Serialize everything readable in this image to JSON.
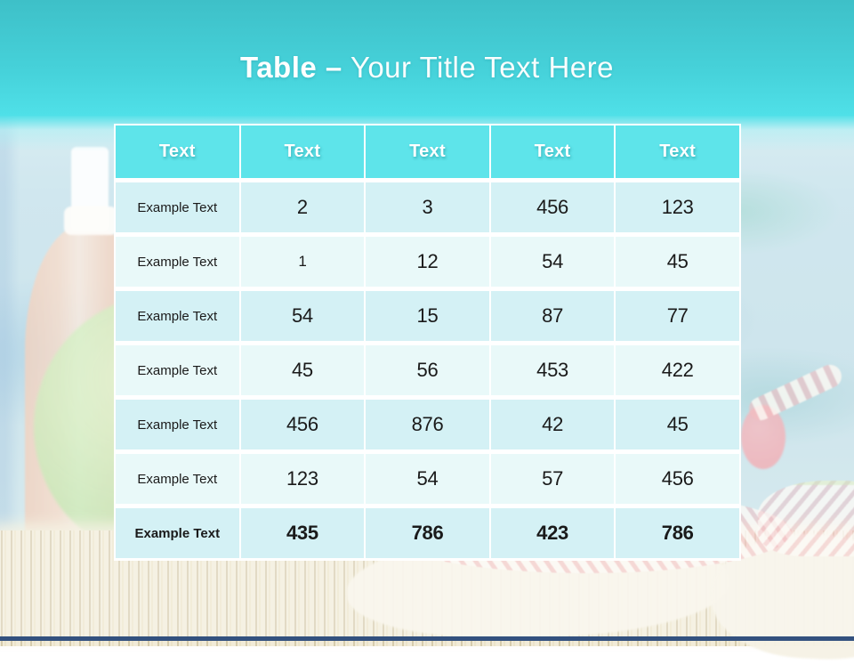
{
  "slide": {
    "title": {
      "bold": "Table –",
      "rest": "Your Title Text Here"
    }
  },
  "table": {
    "headers": [
      "Text",
      "Text",
      "Text",
      "Text",
      "Text"
    ],
    "rows": [
      {
        "label": "Example Text",
        "values": [
          "2",
          "3",
          "456",
          "123"
        ]
      },
      {
        "label": "Example Text",
        "values": [
          "1",
          "12",
          "54",
          "45"
        ]
      },
      {
        "label": "Example Text",
        "values": [
          "54",
          "15",
          "87",
          "77"
        ]
      },
      {
        "label": "Example Text",
        "values": [
          "45",
          "56",
          "453",
          "422"
        ]
      },
      {
        "label": "Example Text",
        "values": [
          "456",
          "876",
          "42",
          "45"
        ]
      },
      {
        "label": "Example Text",
        "values": [
          "123",
          "54",
          "57",
          "456"
        ]
      },
      {
        "label": "Example Text",
        "values": [
          "435",
          "786",
          "423",
          "786"
        ]
      }
    ]
  },
  "colors": {
    "band_top": "#3ec0c8",
    "band_bottom": "#4fe0e8",
    "header_bg": "#5ee4ea",
    "row_odd": "#d4f1f5",
    "row_even": "#e9f9f9",
    "title_text": "#ffffff",
    "cell_text": "#1a1a1a",
    "footer_strip": "#33517f"
  }
}
